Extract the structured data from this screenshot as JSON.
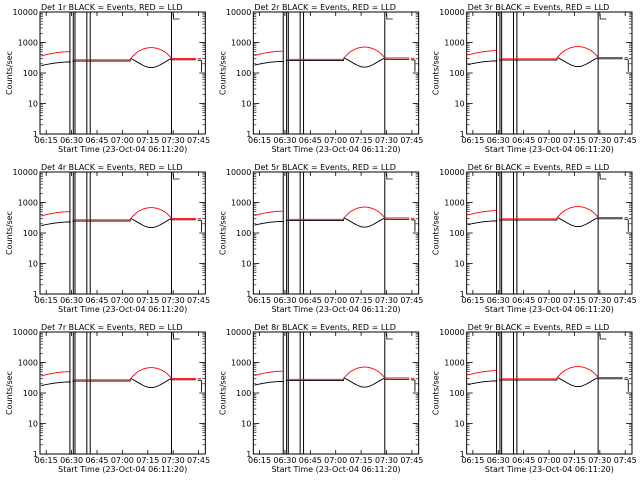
{
  "colors": {
    "events": "#000000",
    "lld": "#ff0000",
    "axes": "#000000",
    "background": "#ffffff"
  },
  "chart_data": [
    {
      "type": "line",
      "title": "Det 1r BLACK = Events, RED = LLD",
      "xlabel": "Start Time (23-Oct-04 06:11:20)",
      "ylabel": "Counts/sec",
      "yscale": "log",
      "ylim": [
        1,
        10000
      ],
      "xlim": [
        "06:11:20",
        "07:49:00"
      ],
      "x_ticks": [
        "06:15",
        "06:30",
        "06:45",
        "07:00",
        "07:15",
        "07:30",
        "07:45"
      ],
      "y_ticks": [
        "1",
        "10",
        "100",
        "1000",
        "10000"
      ],
      "vertical_markers": [
        "06:29",
        "06:31",
        "06:32",
        "06:39",
        "06:41",
        "07:29"
      ],
      "series": [
        {
          "name": "Events",
          "color": "#000000"
        },
        {
          "name": "LLD",
          "color": "#ff0000"
        }
      ]
    },
    {
      "type": "line",
      "title": "Det 2r BLACK = Events, RED = LLD",
      "xlabel": "Start Time (23-Oct-04 06:11:20)",
      "ylabel": "Counts/sec",
      "yscale": "log",
      "ylim": [
        1,
        10000
      ],
      "xlim": [
        "06:11:20",
        "07:49:00"
      ],
      "x_ticks": [
        "06:15",
        "06:30",
        "06:45",
        "07:00",
        "07:15",
        "07:30",
        "07:45"
      ],
      "y_ticks": [
        "1",
        "10",
        "100",
        "1000",
        "10000"
      ],
      "vertical_markers": [
        "06:29",
        "06:31",
        "06:32",
        "06:39",
        "06:41",
        "07:29"
      ],
      "series": [
        {
          "name": "Events",
          "color": "#000000"
        },
        {
          "name": "LLD",
          "color": "#ff0000"
        }
      ]
    },
    {
      "type": "line",
      "title": "Det 3r BLACK = Events, RED = LLD",
      "xlabel": "Start Time (23-Oct-04 06:11:20)",
      "ylabel": "Counts/sec",
      "yscale": "log",
      "ylim": [
        1,
        10000
      ],
      "xlim": [
        "06:11:20",
        "07:49:00"
      ],
      "x_ticks": [
        "06:15",
        "06:30",
        "06:45",
        "07:00",
        "07:15",
        "07:30",
        "07:45"
      ],
      "y_ticks": [
        "1",
        "10",
        "100",
        "1000",
        "10000"
      ],
      "vertical_markers": [
        "06:29",
        "06:31",
        "06:32",
        "06:39",
        "06:41",
        "07:29"
      ],
      "series": [
        {
          "name": "Events",
          "color": "#000000"
        },
        {
          "name": "LLD",
          "color": "#ff0000"
        }
      ]
    },
    {
      "type": "line",
      "title": "Det 4r BLACK = Events, RED = LLD",
      "xlabel": "Start Time (23-Oct-04 06:11:20)",
      "ylabel": "Counts/sec",
      "yscale": "log",
      "ylim": [
        1,
        10000
      ],
      "xlim": [
        "06:11:20",
        "07:49:00"
      ],
      "x_ticks": [
        "06:15",
        "06:30",
        "06:45",
        "07:00",
        "07:15",
        "07:30",
        "07:45"
      ],
      "y_ticks": [
        "1",
        "10",
        "100",
        "1000",
        "10000"
      ],
      "vertical_markers": [
        "06:29",
        "06:31",
        "06:32",
        "06:39",
        "06:41",
        "07:29"
      ],
      "series": [
        {
          "name": "Events",
          "color": "#000000"
        },
        {
          "name": "LLD",
          "color": "#ff0000"
        }
      ]
    },
    {
      "type": "line",
      "title": "Det 5r BLACK = Events, RED = LLD",
      "xlabel": "Start Time (23-Oct-04 06:11:20)",
      "ylabel": "Counts/sec",
      "yscale": "log",
      "ylim": [
        1,
        10000
      ],
      "xlim": [
        "06:11:20",
        "07:49:00"
      ],
      "x_ticks": [
        "06:15",
        "06:30",
        "06:45",
        "07:00",
        "07:15",
        "07:30",
        "07:45"
      ],
      "y_ticks": [
        "1",
        "10",
        "100",
        "1000",
        "10000"
      ],
      "vertical_markers": [
        "06:29",
        "06:31",
        "06:32",
        "06:39",
        "06:41",
        "07:29"
      ],
      "series": [
        {
          "name": "Events",
          "color": "#000000"
        },
        {
          "name": "LLD",
          "color": "#ff0000"
        }
      ]
    },
    {
      "type": "line",
      "title": "Det 6r BLACK = Events, RED = LLD",
      "xlabel": "Start Time (23-Oct-04 06:11:20)",
      "ylabel": "Counts/sec",
      "yscale": "log",
      "ylim": [
        1,
        10000
      ],
      "xlim": [
        "06:11:20",
        "07:49:00"
      ],
      "x_ticks": [
        "06:15",
        "06:30",
        "06:45",
        "07:00",
        "07:15",
        "07:30",
        "07:45"
      ],
      "y_ticks": [
        "1",
        "10",
        "100",
        "1000",
        "10000"
      ],
      "vertical_markers": [
        "06:29",
        "06:31",
        "06:32",
        "06:39",
        "06:41",
        "07:29"
      ],
      "series": [
        {
          "name": "Events",
          "color": "#000000"
        },
        {
          "name": "LLD",
          "color": "#ff0000"
        }
      ]
    },
    {
      "type": "line",
      "title": "Det 7r BLACK = Events, RED = LLD",
      "xlabel": "Start Time (23-Oct-04 06:11:20)",
      "ylabel": "Counts/sec",
      "yscale": "log",
      "ylim": [
        1,
        10000
      ],
      "xlim": [
        "06:11:20",
        "07:49:00"
      ],
      "x_ticks": [
        "06:15",
        "06:30",
        "06:45",
        "07:00",
        "07:15",
        "07:30",
        "07:45"
      ],
      "y_ticks": [
        "1",
        "10",
        "100",
        "1000",
        "10000"
      ],
      "vertical_markers": [
        "06:29",
        "06:31",
        "06:32",
        "06:39",
        "06:41",
        "07:29"
      ],
      "series": [
        {
          "name": "Events",
          "color": "#000000"
        },
        {
          "name": "LLD",
          "color": "#ff0000"
        }
      ]
    },
    {
      "type": "line",
      "title": "Det 8r BLACK = Events, RED = LLD",
      "xlabel": "Start Time (23-Oct-04 06:11:20)",
      "ylabel": "Counts/sec",
      "yscale": "log",
      "ylim": [
        1,
        10000
      ],
      "xlim": [
        "06:11:20",
        "07:49:00"
      ],
      "x_ticks": [
        "06:15",
        "06:30",
        "06:45",
        "07:00",
        "07:15",
        "07:30",
        "07:45"
      ],
      "y_ticks": [
        "1",
        "10",
        "100",
        "1000",
        "10000"
      ],
      "vertical_markers": [
        "06:29",
        "06:31",
        "06:32",
        "06:39",
        "06:41",
        "07:29"
      ],
      "series": [
        {
          "name": "Events",
          "color": "#000000"
        },
        {
          "name": "LLD",
          "color": "#ff0000"
        }
      ]
    },
    {
      "type": "line",
      "title": "Det 9r BLACK = Events, RED = LLD",
      "xlabel": "Start Time (23-Oct-04 06:11:20)",
      "ylabel": "Counts/sec",
      "yscale": "log",
      "ylim": [
        1,
        10000
      ],
      "xlim": [
        "06:11:20",
        "07:49:00"
      ],
      "x_ticks": [
        "06:15",
        "06:30",
        "06:45",
        "07:00",
        "07:15",
        "07:30",
        "07:45"
      ],
      "y_ticks": [
        "1",
        "10",
        "100",
        "1000",
        "10000"
      ],
      "vertical_markers": [
        "06:29",
        "06:31",
        "06:32",
        "06:39",
        "06:41",
        "07:29"
      ],
      "series": [
        {
          "name": "Events",
          "color": "#000000"
        },
        {
          "name": "LLD",
          "color": "#ff0000"
        }
      ]
    }
  ]
}
